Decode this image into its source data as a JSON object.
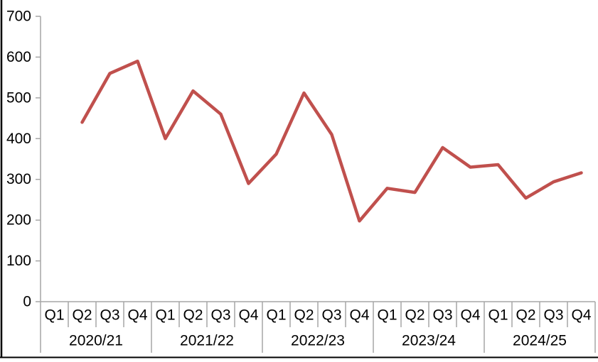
{
  "chart_data": {
    "type": "line",
    "title": "",
    "xlabel": "",
    "ylabel": "",
    "ylim": [
      0,
      700
    ],
    "yticks": [
      0,
      100,
      200,
      300,
      400,
      500,
      600,
      700
    ],
    "grid": false,
    "legend": "none",
    "quarter_labels": [
      "Q1",
      "Q2",
      "Q3",
      "Q4"
    ],
    "year_groups": [
      "2020/21",
      "2021/22",
      "2022/23",
      "2023/24",
      "2024/25"
    ],
    "categories": [
      "Q1",
      "Q2",
      "Q3",
      "Q4",
      "Q1",
      "Q2",
      "Q3",
      "Q4",
      "Q1",
      "Q2",
      "Q3",
      "Q4",
      "Q1",
      "Q2",
      "Q3",
      "Q4",
      "Q1",
      "Q2",
      "Q3",
      "Q4"
    ],
    "values": [
      null,
      440,
      560,
      590,
      400,
      517,
      460,
      290,
      362,
      512,
      410,
      198,
      278,
      268,
      378,
      330,
      336,
      254,
      294,
      316
    ],
    "line_color": "#C0504D"
  },
  "style": {
    "axis_color": "#A6A6A6",
    "text_color": "#000000",
    "page_border_color": "#000000",
    "background": "#FFFFFF"
  }
}
